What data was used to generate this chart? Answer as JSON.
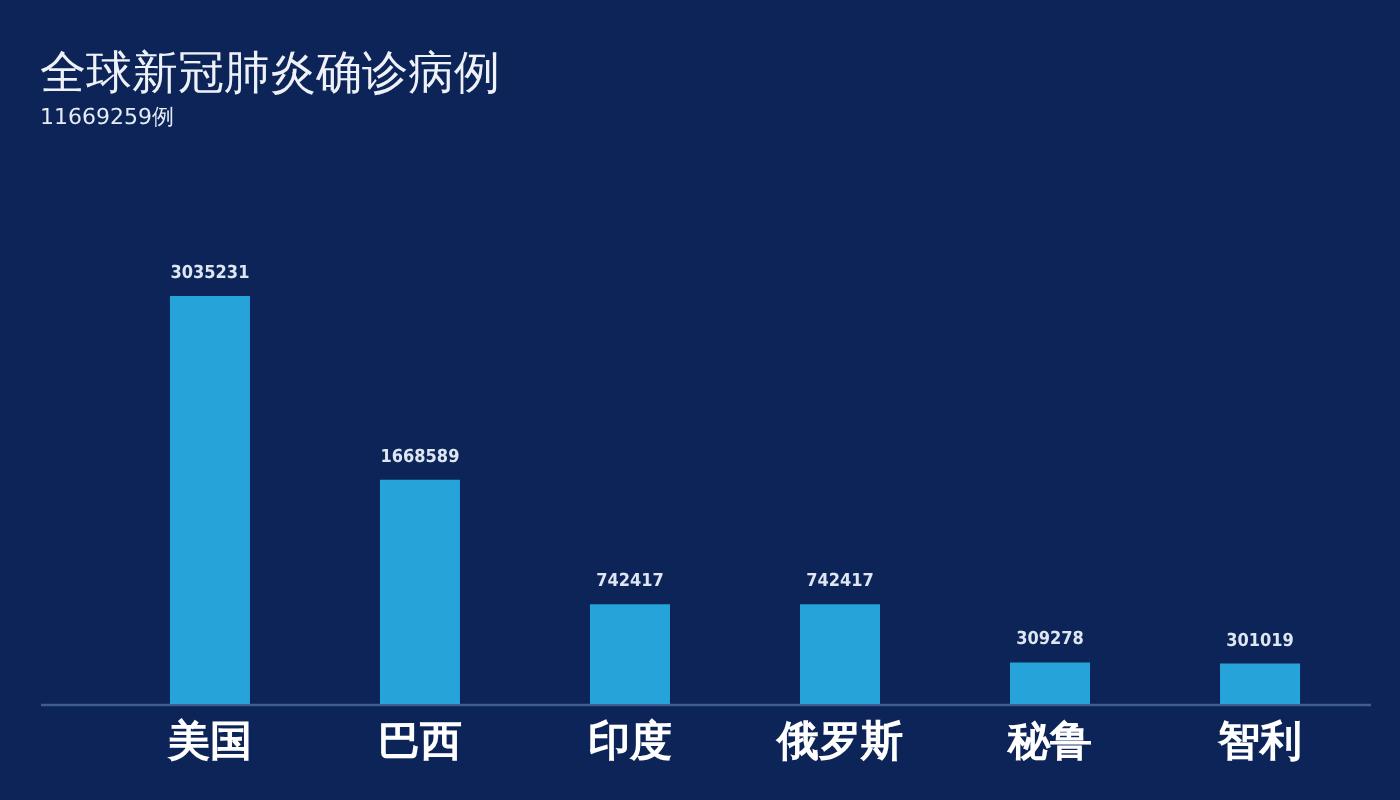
{
  "chart_data": {
    "type": "bar",
    "title": "全球新冠肺炎确诊病例",
    "subtitle": "11669259例",
    "categories": [
      "美国",
      "巴西",
      "印度",
      "俄罗斯",
      "秘鲁",
      "智利"
    ],
    "values": [
      3035231,
      1668589,
      742417,
      742417,
      309278,
      301019
    ],
    "color": "#26a3d8",
    "data_labels": true
  }
}
